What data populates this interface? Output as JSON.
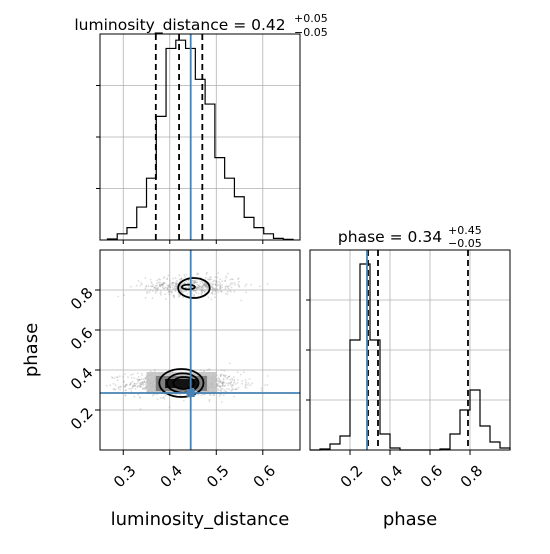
{
  "chart_data": {
    "type": "corner",
    "parameters": [
      "luminosity_distance",
      "phase"
    ],
    "colors": {
      "truth": "#4682b4",
      "hist": "#000000",
      "grid": "#b0b0b0",
      "points": "#9a9a9a",
      "contour": "#000000"
    },
    "truths": {
      "luminosity_distance": 0.445,
      "phase": 0.285
    },
    "marginals": [
      {
        "param": "luminosity_distance",
        "title_name": "luminosity_distance",
        "title_value": "0.42",
        "title_plus": "+0.05",
        "title_minus": "−0.05",
        "xlim": [
          0.25,
          0.68
        ],
        "ylim": [
          0,
          1.0
        ],
        "quantiles": [
          0.37,
          0.42,
          0.47
        ],
        "bin_edges": [
          0.266,
          0.287,
          0.308,
          0.329,
          0.35,
          0.371,
          0.392,
          0.413,
          0.434,
          0.455,
          0.476,
          0.497,
          0.518,
          0.539,
          0.56,
          0.581,
          0.602,
          0.623,
          0.644,
          0.665
        ],
        "counts": [
          0.005,
          0.03,
          0.06,
          0.16,
          0.3,
          0.6,
          0.93,
          0.97,
          0.93,
          0.78,
          0.66,
          0.4,
          0.3,
          0.21,
          0.11,
          0.06,
          0.03,
          0.008,
          0.003
        ]
      },
      {
        "param": "phase",
        "title_name": "phase",
        "title_value": "0.34",
        "title_plus": "+0.45",
        "title_minus": "−0.05",
        "xlim": [
          0.0,
          1.0
        ],
        "ylim": [
          0,
          1.0
        ],
        "quantiles": [
          0.29,
          0.34,
          0.79
        ],
        "bin_edges": [
          0.0,
          0.05,
          0.1,
          0.15,
          0.2,
          0.25,
          0.3,
          0.35,
          0.4,
          0.45,
          0.5,
          0.55,
          0.6,
          0.65,
          0.7,
          0.75,
          0.8,
          0.85,
          0.9,
          0.95,
          1.0
        ],
        "counts": [
          0.0,
          0.005,
          0.03,
          0.07,
          0.55,
          0.93,
          0.55,
          0.08,
          0.01,
          0.0,
          0.0,
          0.0,
          0.0,
          0.005,
          0.08,
          0.2,
          0.3,
          0.12,
          0.04,
          0.01
        ]
      }
    ],
    "joint": {
      "x_param": "luminosity_distance",
      "y_param": "phase",
      "xlim": [
        0.25,
        0.68
      ],
      "ylim": [
        0.0,
        1.0
      ],
      "xticks": [
        0.3,
        0.4,
        0.5,
        0.6
      ],
      "yticks": [
        0.2,
        0.4,
        0.6,
        0.8
      ],
      "xlabel": "luminosity_distance",
      "ylabel": "phase",
      "clusters": [
        {
          "center": [
            0.43,
            0.33
          ],
          "spread": [
            0.06,
            0.03
          ],
          "n": 1100
        },
        {
          "center": [
            0.45,
            0.82
          ],
          "spread": [
            0.05,
            0.025
          ],
          "n": 500
        }
      ],
      "contours": [
        {
          "center": [
            0.425,
            0.335
          ],
          "rx": 0.095,
          "ry": 0.07,
          "level": "outer"
        },
        {
          "center": [
            0.428,
            0.335
          ],
          "rx": 0.068,
          "ry": 0.048,
          "level": "middle"
        },
        {
          "center": [
            0.43,
            0.335
          ],
          "rx": 0.045,
          "ry": 0.03,
          "level": "inner"
        },
        {
          "center": [
            0.452,
            0.81
          ],
          "rx": 0.068,
          "ry": 0.05,
          "level": "outer"
        },
        {
          "center": [
            0.44,
            0.815
          ],
          "rx": 0.028,
          "ry": 0.012,
          "level": "inner"
        }
      ],
      "density_cells": [
        {
          "x": [
            0.39,
            0.46
          ],
          "y": [
            0.31,
            0.355
          ],
          "level": 1.0
        },
        {
          "x": [
            0.37,
            0.48
          ],
          "y": [
            0.295,
            0.37
          ],
          "level": 0.55
        },
        {
          "x": [
            0.35,
            0.5
          ],
          "y": [
            0.28,
            0.39
          ],
          "level": 0.25
        }
      ]
    },
    "phase_marginal_xticks": [
      0.2,
      0.4,
      0.6,
      0.8
    ],
    "phase_marginal_xlabel": "phase"
  }
}
